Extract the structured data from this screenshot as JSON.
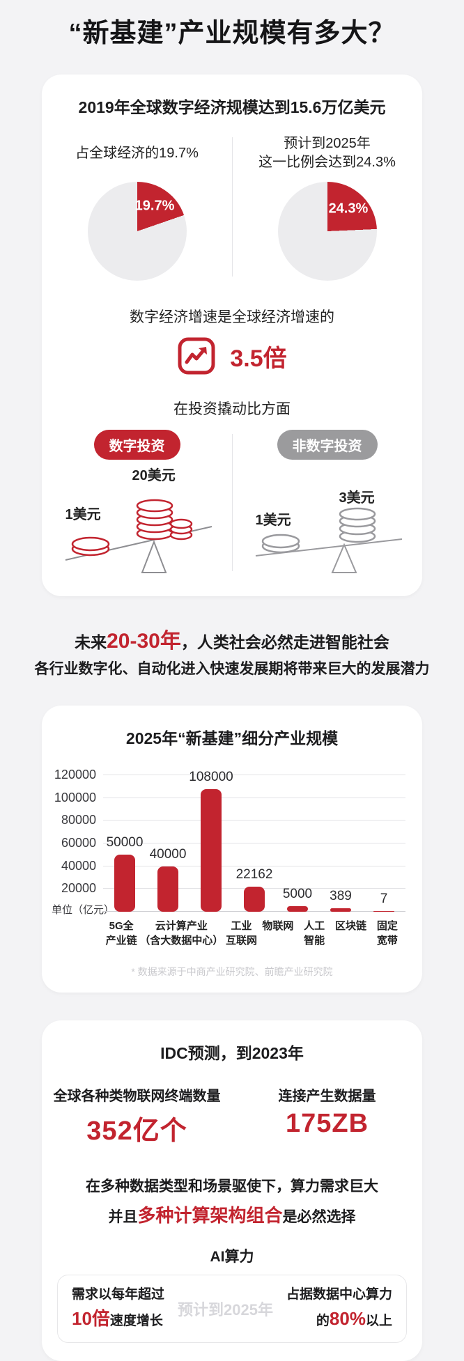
{
  "page": {
    "title": "“新基建”产业规模有多大？"
  },
  "colors": {
    "accent_red": "#C2242F",
    "badge_gray": "#9B9B9D",
    "pie_gray": "#ECECEE",
    "footnote_gray": "#C9C9CD"
  },
  "digital_economy_card": {
    "header": "2019年全球数字经济规模达到15.6万亿美元",
    "pie_2019": {
      "caption": "占全球经济的19.7%",
      "percent": 19.7,
      "label": "19.7%"
    },
    "pie_2025": {
      "caption_line1": "预计到2025年",
      "caption_line2": "这一比例会达到24.3%",
      "percent": 24.3,
      "label": "24.3%"
    },
    "growth": {
      "caption": "数字经济增速是全球经济增速的",
      "multiple": "3.5倍"
    },
    "leverage": {
      "caption": "在投资撬动比方面",
      "digital": {
        "badge": "数字投资",
        "input_label": "1美元",
        "output_label": "20美元"
      },
      "non_digital": {
        "badge": "非数字投资",
        "input_label": "1美元",
        "output_label": "3美元"
      }
    }
  },
  "intro": {
    "line1_prefix": "未来",
    "line1_highlight": "20-30年",
    "line1_suffix": "，人类社会必然走进智能社会",
    "line2": "各行业数字化、自动化进入快速发展期将带来巨大的发展潜力"
  },
  "chart_data": {
    "type": "bar",
    "title": "2025年“新基建”细分产业规模",
    "unit_label": "单位（亿元）",
    "categories": [
      "5G全产业链",
      "云计算产业（含大数据中心）",
      "工业互联网",
      "物联网",
      "人工智能",
      "区块链",
      "固定宽带"
    ],
    "category_lines": [
      [
        "5G全",
        "产业链"
      ],
      [
        "云计算产业",
        "（含大数据中心）"
      ],
      [
        "工业",
        "互联网"
      ],
      [
        "物联网"
      ],
      [
        "人工",
        "智能"
      ],
      [
        "区块链"
      ],
      [
        "固定",
        "宽带"
      ]
    ],
    "values": [
      50000,
      40000,
      108000,
      22162,
      5000,
      389,
      7
    ],
    "ylim": [
      0,
      120000
    ],
    "yticks": [
      20000,
      40000,
      60000,
      80000,
      100000,
      120000
    ],
    "grid": true,
    "legend": "none",
    "footnote": "* 数据来源于中商产业研究院、前瞻产业研究院"
  },
  "idc_card": {
    "header": "IDC预测，到2023年",
    "iot_terminals": {
      "label": "全球各种类物联网终端数量",
      "value": "352亿个"
    },
    "data_volume": {
      "label": "连接产生数据量",
      "value": "175ZB"
    },
    "compute_line1": "在多种数据类型和场景驱使下，算力需求巨大",
    "compute_line2_prefix": "并且",
    "compute_line2_highlight": "多种计算架构组合",
    "compute_line2_suffix": "是必然选择",
    "ai_title": "AI算力",
    "ai_box": {
      "left_line1": "需求以每年超过",
      "left_highlight": "10倍",
      "left_suffix": "速度增长",
      "center_note": "预计到2025年",
      "right_line1": "占据数据中心算力",
      "right_prefix": "的",
      "right_highlight": "80%",
      "right_suffix": "以上"
    }
  }
}
